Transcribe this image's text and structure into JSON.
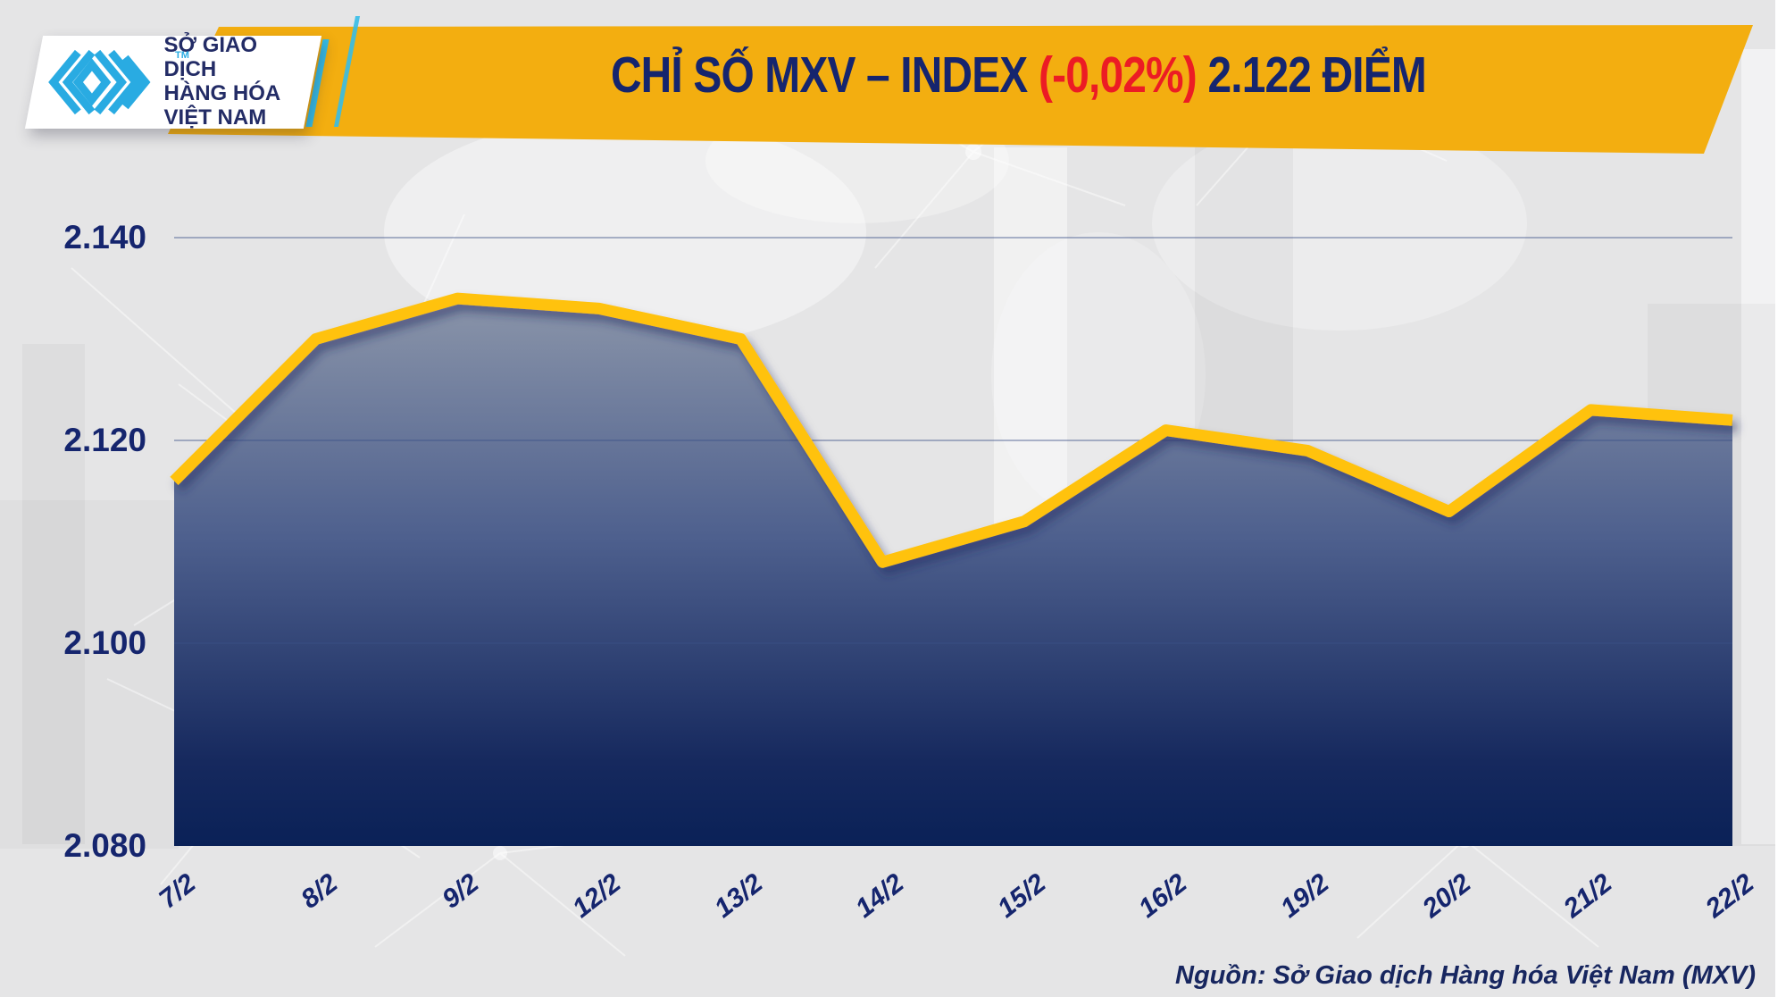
{
  "header": {
    "logo": {
      "line1": "SỞ GIAO DỊCH",
      "line2": "HÀNG HÓA",
      "line3": "VIỆT NAM",
      "trademark": "TM",
      "logo_icon": "mxv-chevron-logo"
    },
    "title": {
      "part1": "CHỈ SỐ MXV – INDEX",
      "change": "(-0,02%)",
      "part2": "2.122 ĐIỂM"
    }
  },
  "footer": {
    "source": "Nguồn: Sở Giao dịch Hàng hóa Việt Nam (MXV)"
  },
  "colors": {
    "banner_yellow": "#f3ae10",
    "line_yellow": "#ffc20e",
    "navy": "#15256e",
    "red": "#ec1c24",
    "cyan": "#29abe2",
    "fill_top": "#8e98ab",
    "fill_mid": "#4e608e",
    "fill_deep": "#16295e",
    "fill_bottom": "#0a2157",
    "gridline": "#3d5187",
    "background_grey": "#e5e5e6"
  },
  "chart_data": {
    "type": "area",
    "title": "CHỈ SỐ MXV – INDEX (-0,02%) 2.122 ĐIỂM",
    "x": [
      "7/2",
      "8/2",
      "9/2",
      "12/2",
      "13/2",
      "14/2",
      "15/2",
      "16/2",
      "19/2",
      "20/2",
      "21/2",
      "22/2"
    ],
    "values": [
      2116,
      2130,
      2134,
      2133,
      2130,
      2108,
      2112,
      2121,
      2119,
      2113,
      2123,
      2122
    ],
    "y_ticks": [
      {
        "label": "2.140",
        "value": 2140
      },
      {
        "label": "2.120",
        "value": 2120
      },
      {
        "label": "2.100",
        "value": 2100
      },
      {
        "label": "2.080",
        "value": 2080
      }
    ],
    "ylim": [
      2080,
      2140
    ],
    "xlabel": "",
    "ylabel": "",
    "legend": "none",
    "grid": "horizontal",
    "last_point_label": "2.122",
    "change_percent": "-0,02%"
  }
}
